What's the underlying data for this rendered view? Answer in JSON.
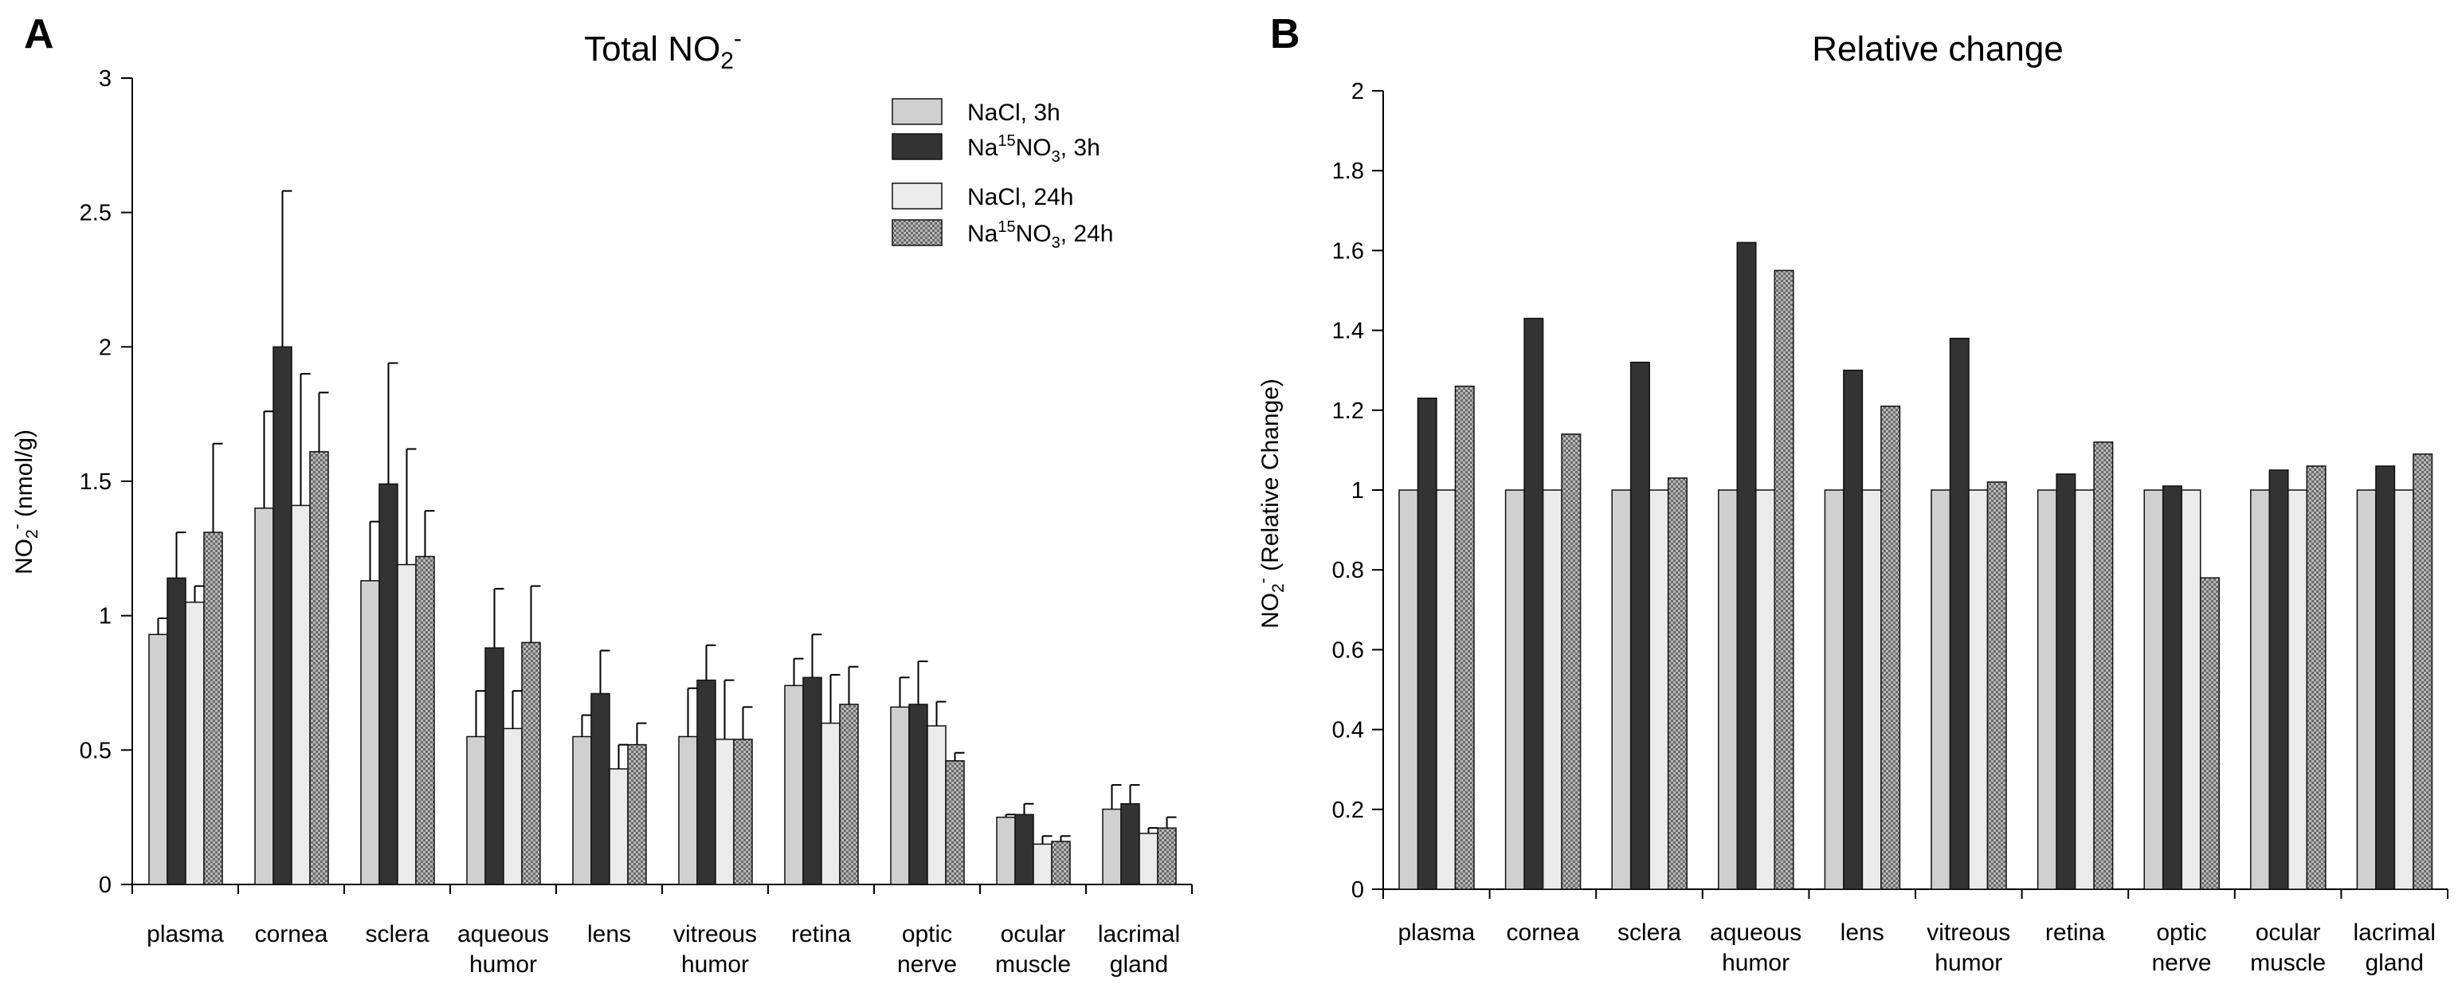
{
  "chart_data": [
    {
      "type": "bar",
      "panel_label": "A",
      "title": "Total NO",
      "title_sub": "2",
      "title_sup": "-",
      "ylabel_base": "NO",
      "ylabel_sub": "2",
      "ylabel_sup": "-",
      "ylabel_rest": " (nmol/g)",
      "ylim": [
        0,
        3
      ],
      "yticks": [
        0,
        0.5,
        1,
        1.5,
        2,
        2.5,
        3
      ],
      "ytick_labels": [
        "0",
        "0.5",
        "1",
        "1.5",
        "2",
        "2.5",
        "3"
      ],
      "categories": [
        [
          "plasma"
        ],
        [
          "cornea"
        ],
        [
          "sclera"
        ],
        [
          "aqueous",
          "humor"
        ],
        [
          "lens"
        ],
        [
          "vitreous",
          "humor"
        ],
        [
          "retina"
        ],
        [
          "optic",
          "nerve"
        ],
        [
          "ocular",
          "muscle"
        ],
        [
          "lacrimal",
          "gland"
        ]
      ],
      "legend": [
        {
          "pre": "NaCl, 3h",
          "sup": "",
          "mid": "",
          "sub": "",
          "post": ""
        },
        {
          "pre": "Na",
          "sup": "15",
          "mid": "NO",
          "sub": "3",
          "post": ", 3h"
        },
        {
          "pre": "NaCl, 24h",
          "sup": "",
          "mid": "",
          "sub": "",
          "post": ""
        },
        {
          "pre": "Na",
          "sup": "15",
          "mid": "NO",
          "sub": "3",
          "post": ", 24h"
        }
      ],
      "legend_position": "top-right",
      "series": [
        {
          "name": "NaCl, 3h",
          "color": "#d0d0d0",
          "pattern": "solid",
          "values": [
            0.93,
            1.4,
            1.13,
            0.55,
            0.55,
            0.55,
            0.74,
            0.66,
            0.25,
            0.28
          ],
          "errors": [
            0.06,
            0.36,
            0.22,
            0.17,
            0.08,
            0.18,
            0.1,
            0.11,
            0.01,
            0.09
          ]
        },
        {
          "name": "Na15NO3, 3h",
          "color": "#333333",
          "pattern": "solid",
          "values": [
            1.14,
            2.0,
            1.49,
            0.88,
            0.71,
            0.76,
            0.77,
            0.67,
            0.26,
            0.3
          ],
          "errors": [
            0.17,
            0.58,
            0.45,
            0.22,
            0.16,
            0.13,
            0.16,
            0.16,
            0.04,
            0.07
          ]
        },
        {
          "name": "NaCl, 24h",
          "color": "#ebebeb",
          "pattern": "solid",
          "values": [
            1.05,
            1.41,
            1.19,
            0.58,
            0.43,
            0.54,
            0.6,
            0.59,
            0.15,
            0.19
          ],
          "errors": [
            0.06,
            0.49,
            0.43,
            0.14,
            0.09,
            0.22,
            0.18,
            0.09,
            0.03,
            0.02
          ]
        },
        {
          "name": "Na15NO3, 24h",
          "color": "#b8b8b8",
          "pattern": "checker",
          "values": [
            1.31,
            1.61,
            1.22,
            0.9,
            0.52,
            0.54,
            0.67,
            0.46,
            0.16,
            0.21
          ],
          "errors": [
            0.33,
            0.22,
            0.17,
            0.21,
            0.08,
            0.12,
            0.14,
            0.03,
            0.02,
            0.04
          ]
        }
      ]
    },
    {
      "type": "bar",
      "panel_label": "B",
      "title": "Relative change",
      "ylabel_base": "NO",
      "ylabel_sub": "2",
      "ylabel_sup": "-",
      "ylabel_rest": " (Relative Change)",
      "ylim": [
        0,
        2
      ],
      "yticks": [
        0,
        0.2,
        0.4,
        0.6,
        0.8,
        1,
        1.2,
        1.4,
        1.6,
        1.8,
        2
      ],
      "ytick_labels": [
        "0",
        "0.2",
        "0.4",
        "0.6",
        "0.8",
        "1",
        "1.2",
        "1.4",
        "1.6",
        "1.8",
        "2"
      ],
      "categories": [
        [
          "plasma"
        ],
        [
          "cornea"
        ],
        [
          "sclera"
        ],
        [
          "aqueous",
          "humor"
        ],
        [
          "lens"
        ],
        [
          "vitreous",
          "humor"
        ],
        [
          "retina"
        ],
        [
          "optic",
          "nerve"
        ],
        [
          "ocular",
          "muscle"
        ],
        [
          "lacrimal",
          "gland"
        ]
      ],
      "series": [
        {
          "name": "NaCl, 3h",
          "color": "#d0d0d0",
          "pattern": "solid",
          "values": [
            1,
            1,
            1,
            1,
            1,
            1,
            1,
            1,
            1,
            1
          ]
        },
        {
          "name": "Na15NO3, 3h",
          "color": "#333333",
          "pattern": "solid",
          "values": [
            1.23,
            1.43,
            1.32,
            1.62,
            1.3,
            1.38,
            1.04,
            1.01,
            1.05,
            1.06
          ]
        },
        {
          "name": "NaCl, 24h",
          "color": "#ebebeb",
          "pattern": "solid",
          "values": [
            1,
            1,
            1,
            1,
            1,
            1,
            1,
            1,
            1,
            1
          ]
        },
        {
          "name": "Na15NO3, 24h",
          "color": "#b8b8b8",
          "pattern": "checker",
          "values": [
            1.26,
            1.14,
            1.03,
            1.55,
            1.21,
            1.02,
            1.12,
            0.78,
            1.06,
            1.09
          ]
        }
      ]
    }
  ]
}
